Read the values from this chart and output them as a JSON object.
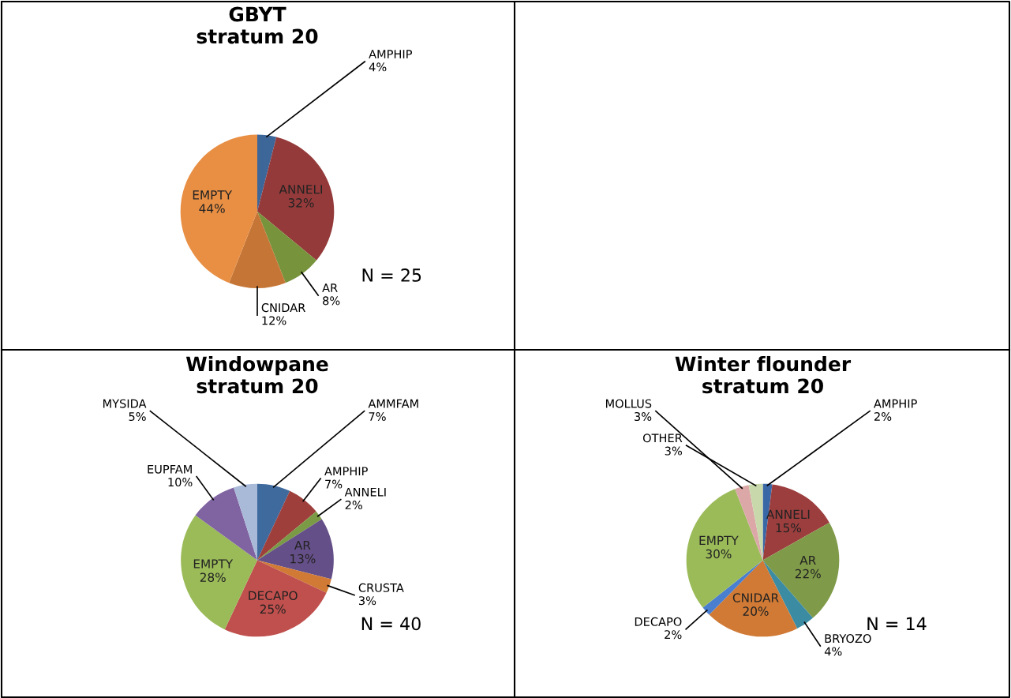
{
  "chart_data": [
    {
      "type": "pie",
      "title": "GBYT\nstratum 20",
      "categories": [
        "AMPHIP",
        "ANNELI",
        "AR",
        "CNIDAR",
        "EMPTY"
      ],
      "values": [
        4,
        32,
        8,
        12,
        44
      ],
      "colors": [
        "#3d6699",
        "#953a3a",
        "#77933c",
        "#c57636",
        "#e88f44"
      ],
      "value_labels": [
        "4%",
        "32%",
        "8%",
        "12%",
        "44%"
      ],
      "annotations": [
        "N = 25"
      ]
    },
    {
      "type": "pie",
      "title": "Windowpane\nstratum 20",
      "categories": [
        "AMMFAM",
        "AMPHIP",
        "ANNELI",
        "AR",
        "CRUSTA",
        "DECAPO",
        "EMPTY",
        "EUPFAM",
        "MYSIDA"
      ],
      "values": [
        7,
        7,
        2,
        13,
        3,
        25,
        28,
        10,
        5
      ],
      "colors": [
        "#3e6a9e",
        "#9e3f3c",
        "#7b9a45",
        "#654f88",
        "#d07a35",
        "#c0504d",
        "#9bbb59",
        "#8064a2",
        "#a9b9d8"
      ],
      "value_labels": [
        "7%",
        "7%",
        "2%",
        "13%",
        "3%",
        "25%",
        "28%",
        "10%",
        "5%"
      ],
      "annotations": [
        "N = 40"
      ]
    },
    {
      "type": "pie",
      "title": "Winter flounder\nstratum 20",
      "categories": [
        "AMPHIP",
        "ANNELI",
        "AR",
        "BRYOZO",
        "CNIDAR",
        "DECAPO",
        "EMPTY",
        "MOLLUS",
        "OTHER"
      ],
      "values": [
        2,
        15,
        22,
        4,
        20,
        2,
        30,
        3,
        3
      ],
      "colors": [
        "#3a67a5",
        "#9c3e3e",
        "#7f9a48",
        "#3b8ca3",
        "#d07a35",
        "#4a7fcf",
        "#9bbb59",
        "#dba7a7",
        "#c8d8ab"
      ],
      "value_labels": [
        "2%",
        "15%",
        "22%",
        "4%",
        "20%",
        "2%",
        "30%",
        "3%",
        "3%"
      ],
      "annotations": [
        "N = 14"
      ]
    }
  ]
}
